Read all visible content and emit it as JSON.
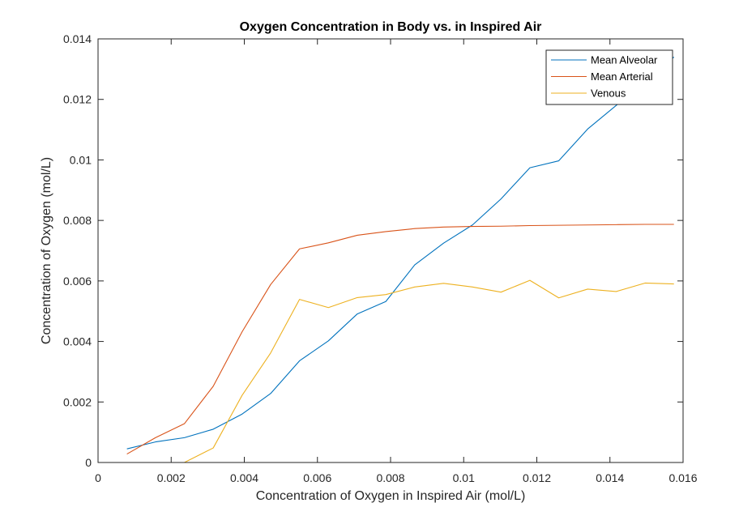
{
  "chart_data": {
    "type": "line",
    "title": "Oxygen Concentration in Body vs. in Inspired Air",
    "xlabel": "Concentration of Oxygen in Inspired Air (mol/L)",
    "ylabel": "Concentration of Oxygen (mol/L)",
    "xlim": [
      0,
      0.016
    ],
    "ylim": [
      0,
      0.014
    ],
    "xticks": [
      0,
      0.002,
      0.004,
      0.006,
      0.008,
      0.01,
      0.012,
      0.014,
      0.016
    ],
    "xtick_labels": [
      "0",
      "0.002",
      "0.004",
      "0.006",
      "0.008",
      "0.01",
      "0.012",
      "0.014",
      "0.016"
    ],
    "yticks": [
      0,
      0.002,
      0.004,
      0.006,
      0.008,
      0.01,
      0.012,
      0.014
    ],
    "ytick_labels": [
      "0",
      "0.002",
      "0.004",
      "0.006",
      "0.008",
      "0.01",
      "0.012",
      "0.014"
    ],
    "grid": false,
    "legend_position": "top-right",
    "x": [
      0.00079,
      0.00157,
      0.00236,
      0.00315,
      0.00394,
      0.00472,
      0.00551,
      0.0063,
      0.00709,
      0.00787,
      0.00866,
      0.00945,
      0.01024,
      0.01102,
      0.01181,
      0.0126,
      0.01339,
      0.01417,
      0.01496,
      0.01575
    ],
    "series": [
      {
        "name": "Mean Alveolar",
        "color": "#0072BD",
        "values": [
          0.00045,
          0.00068,
          0.00082,
          0.0011,
          0.0016,
          0.00228,
          0.00336,
          0.00402,
          0.00491,
          0.00532,
          0.00653,
          0.00725,
          0.00785,
          0.00871,
          0.00974,
          0.00997,
          0.01102,
          0.0118,
          0.0126,
          0.0134
        ]
      },
      {
        "name": "Mean Arterial",
        "color": "#D95319",
        "values": [
          0.00028,
          0.00082,
          0.00128,
          0.00252,
          0.00432,
          0.00588,
          0.00706,
          0.00726,
          0.00751,
          0.00763,
          0.00773,
          0.00778,
          0.0078,
          0.00781,
          0.00783,
          0.00784,
          0.00785,
          0.00786,
          0.00787,
          0.00787
        ]
      },
      {
        "name": "Venous",
        "color": "#EDB120",
        "values": [
          0.0,
          0.0,
          0.0,
          0.00048,
          0.00222,
          0.00362,
          0.00539,
          0.00512,
          0.00545,
          0.00555,
          0.0058,
          0.00592,
          0.0058,
          0.00563,
          0.00602,
          0.00544,
          0.00573,
          0.00565,
          0.00593,
          0.0059
        ]
      }
    ]
  }
}
